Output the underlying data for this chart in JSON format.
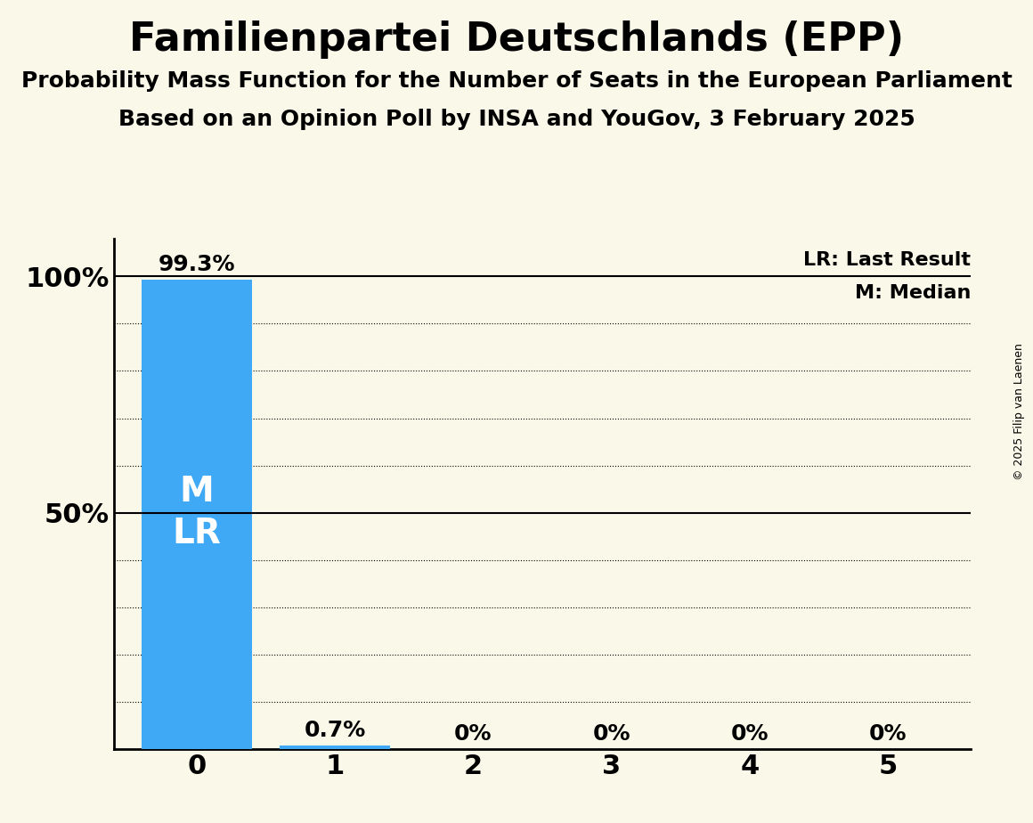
{
  "title": "Familienpartei Deutschlands (EPP)",
  "subtitle1": "Probability Mass Function for the Number of Seats in the European Parliament",
  "subtitle2": "Based on an Opinion Poll by INSA and YouGov, 3 February 2025",
  "categories": [
    0,
    1,
    2,
    3,
    4,
    5
  ],
  "values": [
    99.3,
    0.7,
    0.0,
    0.0,
    0.0,
    0.0
  ],
  "bar_color": "#3fa9f5",
  "background_color": "#faf8e8",
  "yticks": [
    0,
    10,
    20,
    30,
    40,
    50,
    60,
    70,
    80,
    90,
    100
  ],
  "ylim": [
    0,
    108
  ],
  "ylabel_ticks": [
    50,
    100
  ],
  "legend_lr": "LR: Last Result",
  "legend_m": "M: Median",
  "median": 0,
  "last_result": 0,
  "bar_label_fontsize": 18,
  "title_fontsize": 32,
  "subtitle_fontsize": 18,
  "axis_label_fontsize": 22,
  "copyright": "© 2025 Filip van Laenen"
}
